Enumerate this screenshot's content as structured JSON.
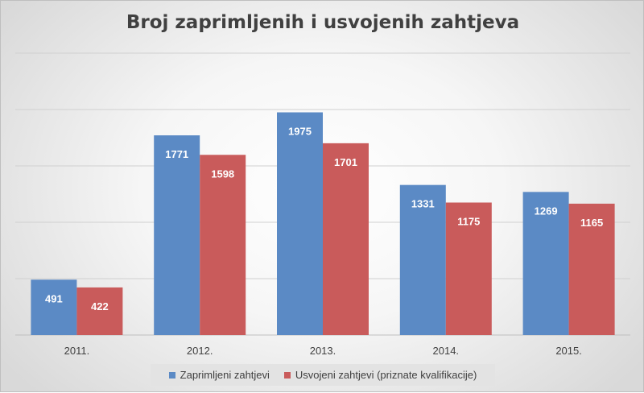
{
  "chart_data": {
    "type": "bar",
    "title": "Broj zaprimljenih i usvojenih zahtjeva",
    "categories": [
      "2011.",
      "2012.",
      "2013.",
      "2014.",
      "2015."
    ],
    "series": [
      {
        "name": "Zaprimljeni zahtjevi",
        "values": [
          491,
          1771,
          1975,
          1331,
          1269
        ],
        "color": "#5b8ac5"
      },
      {
        "name": "Usvojeni zahtjevi (priznate kvalifikacije)",
        "values": [
          422,
          1598,
          1701,
          1175,
          1165
        ],
        "color": "#c95b5b"
      }
    ],
    "ylim": [
      0,
      2500
    ],
    "grid": true,
    "legend_position": "bottom",
    "data_labels": true
  }
}
